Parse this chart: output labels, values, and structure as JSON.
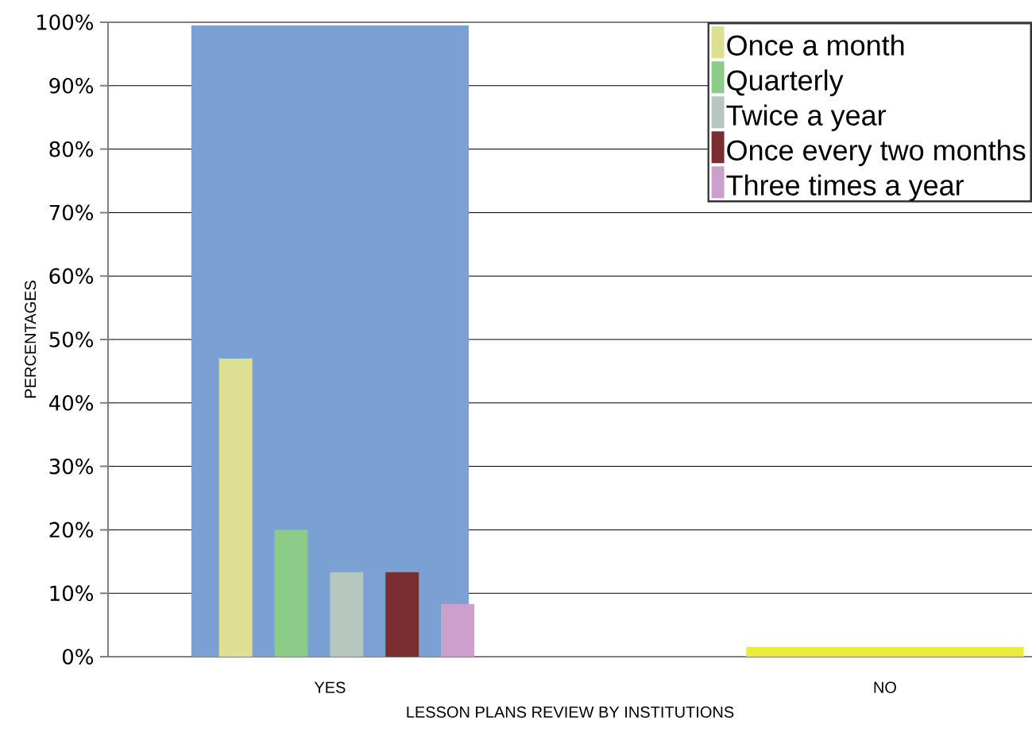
{
  "chart_data": {
    "type": "bar",
    "xlabel": "LESSON PLANS REVIEW BY INSTITUTIONS",
    "ylabel": "PERCENTAGES",
    "categories": [
      "YES",
      "NO"
    ],
    "series": [
      {
        "colors": [
          "#7ba0d4",
          "#eeea3c"
        ],
        "values": [
          99.5,
          1.5
        ]
      },
      {
        "name": "Once a month",
        "color": "#dfdf93",
        "values": [
          47,
          null
        ]
      },
      {
        "name": "Quarterly",
        "color": "#8ccb88",
        "values": [
          20,
          null
        ]
      },
      {
        "name": "Twice a year",
        "color": "#b6c7c0",
        "values": [
          13.3,
          null
        ]
      },
      {
        "name": "Once every two months",
        "color": "#7a2e31",
        "values": [
          13.3,
          null
        ]
      },
      {
        "name": "Three times a year",
        "color": "#cba0cc",
        "values": [
          8.3,
          null
        ]
      }
    ],
    "ylim": [
      0,
      100
    ],
    "yticks": [
      {
        "value": 0,
        "label": "0%"
      },
      {
        "value": 10,
        "label": "10%"
      },
      {
        "value": 20,
        "label": "20%"
      },
      {
        "value": 30,
        "label": "30%"
      },
      {
        "value": 40,
        "label": "40%"
      },
      {
        "value": 50,
        "label": "50%"
      },
      {
        "value": 60,
        "label": "60%"
      },
      {
        "value": 70,
        "label": "70%"
      },
      {
        "value": 80,
        "label": "80%"
      },
      {
        "value": 90,
        "label": "90%"
      },
      {
        "value": 100,
        "label": "100%"
      }
    ],
    "grid": "y",
    "legend": "top right"
  }
}
